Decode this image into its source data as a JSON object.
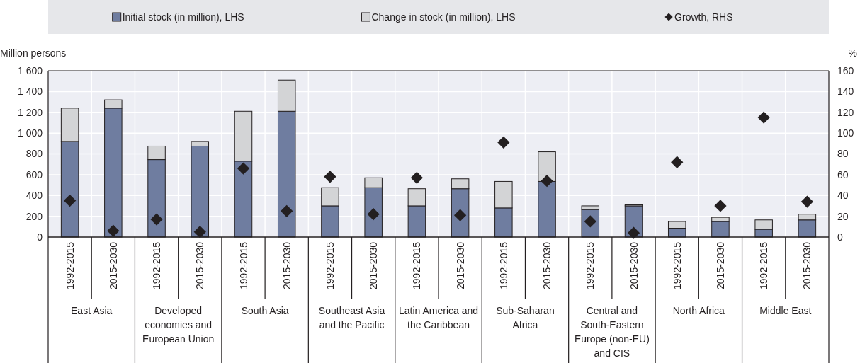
{
  "chart_data": {
    "type": "bar",
    "categories": [
      "1992-2015",
      "2015-2030",
      "1992-2015",
      "2015-2030",
      "1992-2015",
      "2015-2030",
      "1992-2015",
      "2015-2030",
      "1992-2015",
      "2015-2030",
      "1992-2015",
      "2015-2030",
      "1992-2015",
      "2015-2030",
      "1992-2015",
      "2015-2030",
      "1992-2015",
      "2015-2030"
    ],
    "series": [
      {
        "name": "Initial stock (in million), LHS",
        "color": "#6f7da0",
        "values": [
          920,
          1240,
          745,
          875,
          730,
          1210,
          300,
          475,
          300,
          465,
          280,
          535,
          265,
          300,
          85,
          150,
          75,
          165
        ]
      },
      {
        "name": "Change in stock (in million), LHS",
        "color": "#d3d4d6",
        "values": [
          320,
          80,
          130,
          45,
          480,
          300,
          175,
          95,
          165,
          95,
          255,
          285,
          35,
          10,
          65,
          40,
          90,
          55
        ]
      },
      {
        "name": "Growth, RHS",
        "type": "scatter",
        "axis": "y2",
        "color": "#231f20",
        "values": [
          35,
          6,
          17,
          5,
          66,
          25,
          58,
          22,
          57,
          21,
          91,
          54,
          15,
          4,
          72,
          30,
          115,
          34
        ]
      }
    ],
    "stacked": true,
    "marker": "diamond",
    "ylabel": "Million persons",
    "y2label": "%",
    "ylim": [
      0,
      1600
    ],
    "yticks": [
      0,
      200,
      400,
      600,
      800,
      {
        "value": 1000,
        "label": "1 000"
      },
      {
        "value": 1200,
        "label": "1 200"
      },
      {
        "value": 1400,
        "label": "1 400"
      },
      {
        "value": 1600,
        "label": "1 600"
      }
    ],
    "y2lim": [
      0,
      160
    ],
    "y2ticks": [
      0,
      20,
      40,
      60,
      80,
      100,
      120,
      140,
      160
    ],
    "grid": true,
    "legend": "top",
    "annotations": [
      "East Asia",
      "Developed economies and European Union",
      "South Asia",
      "Southeast Asia and the Pacific",
      "Latin America and the Caribbean",
      "Sub-Saharan Africa",
      "Central and South-Eastern Europe (non-EU) and CIS",
      "North Africa",
      "Middle East"
    ]
  }
}
